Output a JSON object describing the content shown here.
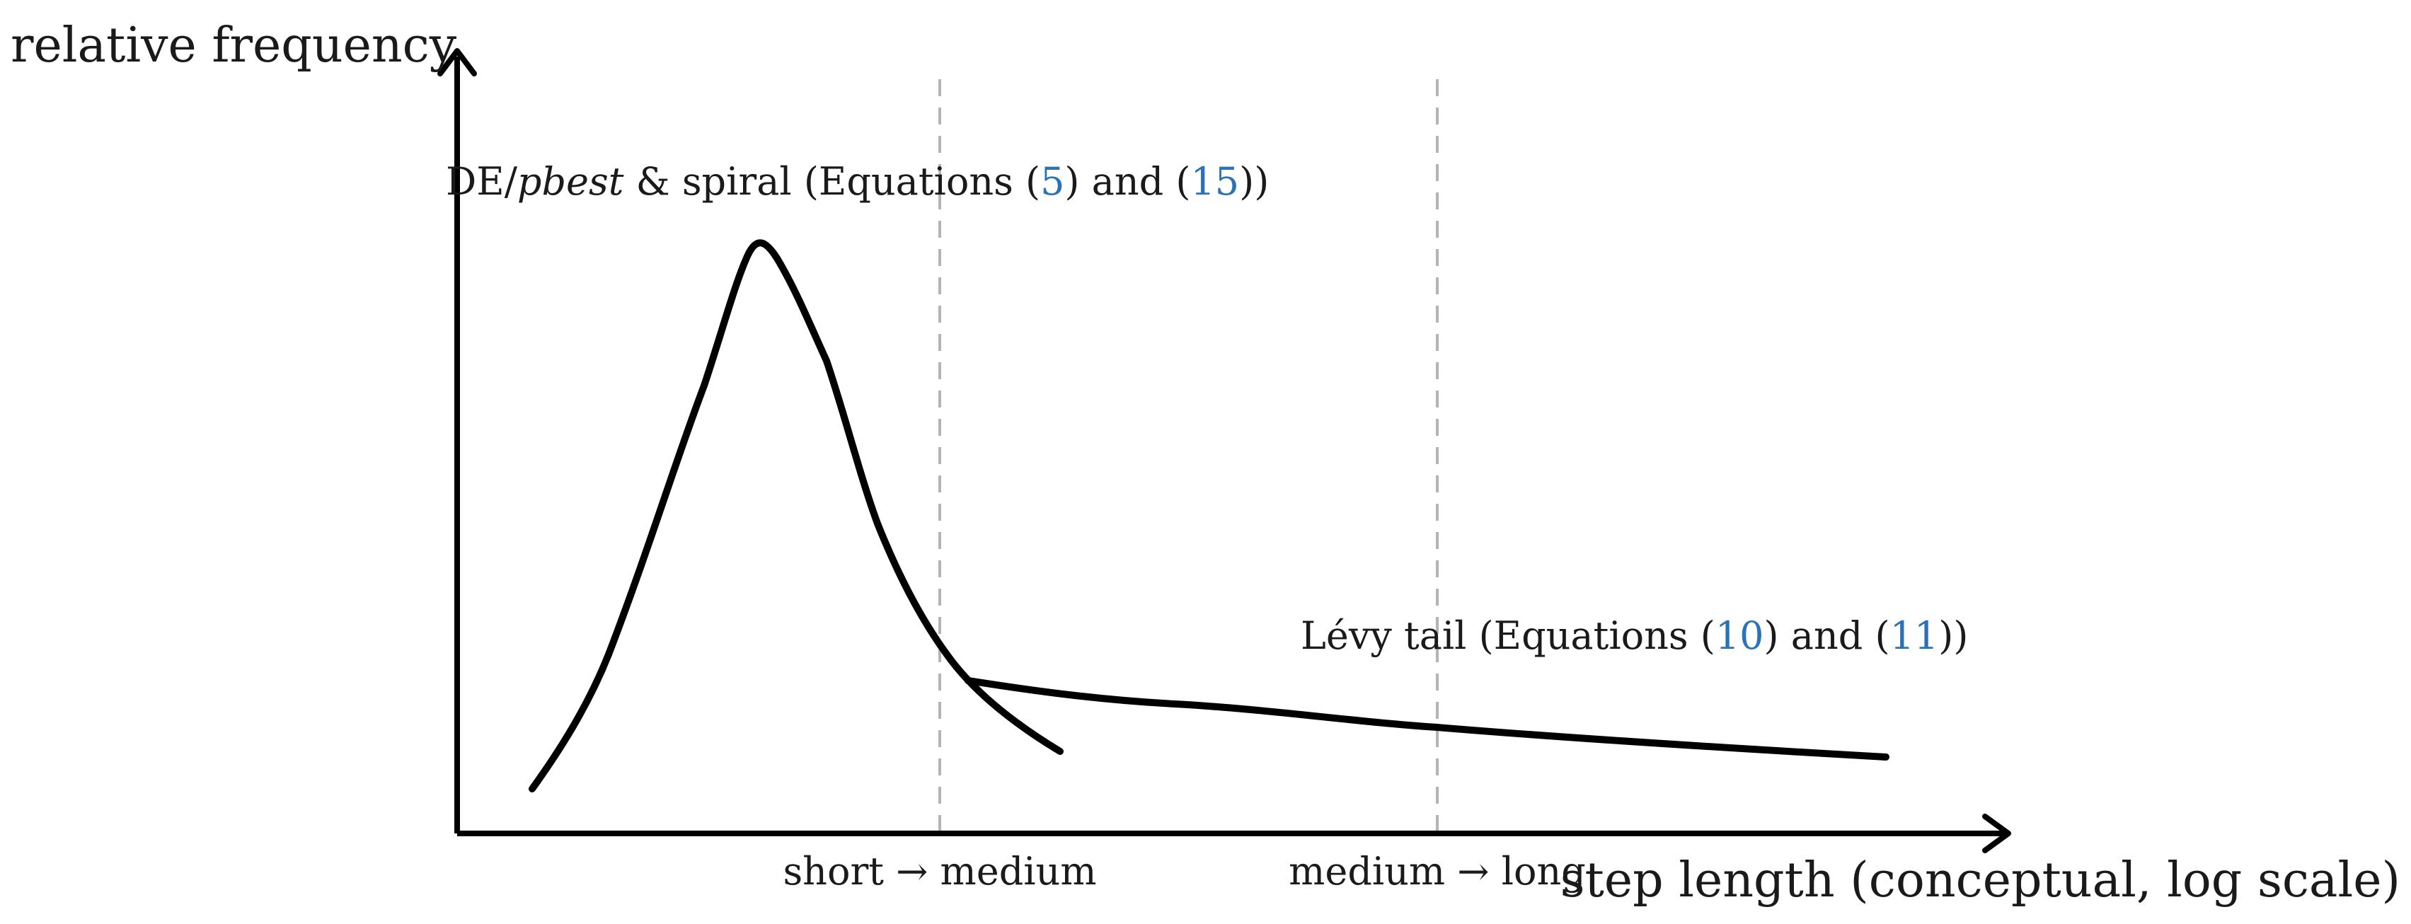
{
  "axes": {
    "y_label": "relative frequency",
    "x_label": "step length (conceptual, log scale)"
  },
  "boundaries": [
    {
      "label": "short → medium"
    },
    {
      "label": "medium → long"
    }
  ],
  "annotations": {
    "de_spiral": {
      "prefix": "DE/",
      "italic": "pbest",
      "middle": " & spiral (Equations (",
      "ref1": "5",
      "and_text": ") and (",
      "ref2": "15",
      "suffix": "))"
    },
    "levy": {
      "prefix": "Lévy tail (Equations (",
      "ref1": "10",
      "and_text": ") and (",
      "ref2": "11",
      "suffix": "))"
    }
  },
  "colors": {
    "curve": "#000000",
    "axis": "#000000",
    "boundary": "#b4b4b4",
    "reference": "#2a73b8"
  }
}
